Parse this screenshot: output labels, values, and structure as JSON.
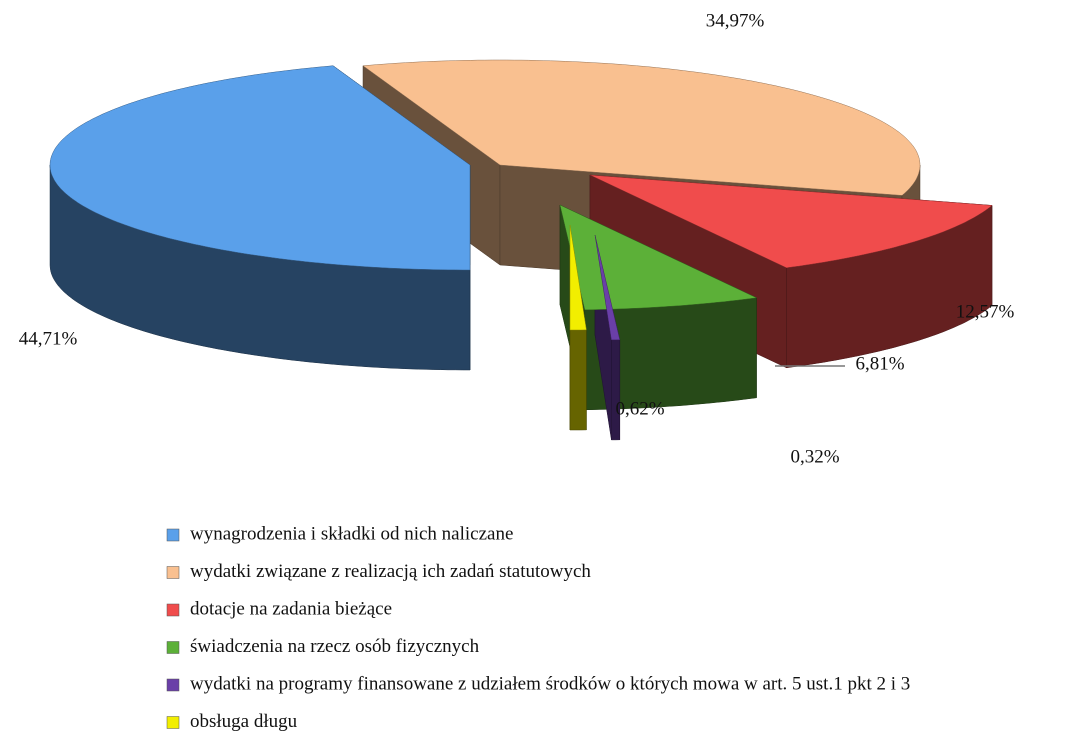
{
  "chart_data": {
    "type": "pie3d",
    "categories": [
      "wynagrodzenia i składki od nich naliczane",
      "wydatki związane z realizacją ich zadań statutowych",
      "dotacje na zadania bieżące",
      "świadczenia na rzecz osób fizycznych",
      "wydatki na programy  finansowane z udziałem środków o których mowa w art. 5 ust.1 pkt 2 i 3",
      "obsługa długu"
    ],
    "values": [
      44.71,
      34.97,
      12.57,
      6.81,
      0.32,
      0.62
    ],
    "value_labels": [
      "44,71%",
      "34,97%",
      "12,57%",
      "6,81%",
      "0,32%",
      "0,62%"
    ],
    "colors": [
      "#5aa0ea",
      "#f9c090",
      "#f04c4c",
      "#5cb038",
      "#6a3fa8",
      "#f2ee00"
    ]
  }
}
